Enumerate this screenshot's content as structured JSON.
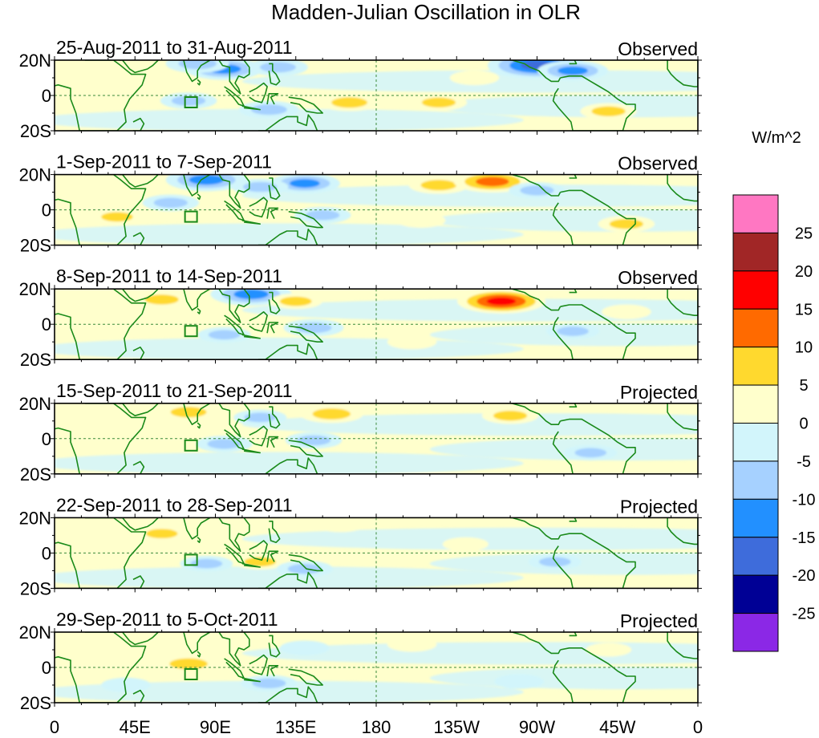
{
  "chart_data": {
    "type": "heatmap",
    "title": "Madden-Julian Oscillation in OLR",
    "variable": "OLR anomaly",
    "colorbar": {
      "units": "W/m^2",
      "levels": [
        25,
        20,
        15,
        10,
        5,
        0,
        -5,
        -10,
        -15,
        -20,
        -25
      ],
      "colors": [
        "#ff77c2",
        "#a12626",
        "#ff0000",
        "#ff6a00",
        "#ffd92e",
        "#ffffcc",
        "#d2f5fb",
        "#a6d1ff",
        "#2290ff",
        "#3e6cdb",
        "#000095",
        "#8b28e6"
      ]
    },
    "x_axis": {
      "ticks": [
        "0",
        "45E",
        "90E",
        "135E",
        "180",
        "135W",
        "90W",
        "45W",
        "0"
      ],
      "tick_values": [
        0,
        45,
        90,
        135,
        180,
        225,
        270,
        315,
        360
      ],
      "range": [
        0,
        360
      ]
    },
    "y_axis": {
      "ticks": [
        "20N",
        "0",
        "20S"
      ],
      "tick_values": [
        20,
        0,
        -20
      ],
      "range": [
        -20,
        20
      ]
    },
    "panels": [
      {
        "period": "25-Aug-2011 to 31-Aug-2011",
        "status": "Observed",
        "anomalies": [
          {
            "lon": 95,
            "lat": 15,
            "value": -12
          },
          {
            "lon": 80,
            "lat": 18,
            "value": -8
          },
          {
            "lon": 125,
            "lat": 16,
            "value": -7
          },
          {
            "lon": 270,
            "lat": 17,
            "value": -18
          },
          {
            "lon": 290,
            "lat": 14,
            "value": -10
          },
          {
            "lon": 75,
            "lat": -3,
            "value": -6
          },
          {
            "lon": 120,
            "lat": -8,
            "value": -7
          },
          {
            "lon": 165,
            "lat": -4,
            "value": 7
          },
          {
            "lon": 215,
            "lat": -4,
            "value": 6
          },
          {
            "lon": 310,
            "lat": -9,
            "value": 6
          },
          {
            "lon": 235,
            "lat": 10,
            "value": 4
          },
          {
            "lon": 30,
            "lat": 3,
            "value": 3
          }
        ]
      },
      {
        "period": "1-Sep-2011 to 7-Sep-2011",
        "status": "Observed",
        "anomalies": [
          {
            "lon": 85,
            "lat": 17,
            "value": -13
          },
          {
            "lon": 140,
            "lat": 15,
            "value": -10
          },
          {
            "lon": 115,
            "lat": 13,
            "value": -6
          },
          {
            "lon": 215,
            "lat": 14,
            "value": 7
          },
          {
            "lon": 245,
            "lat": 16,
            "value": 12
          },
          {
            "lon": 270,
            "lat": 11,
            "value": -6
          },
          {
            "lon": 150,
            "lat": -3,
            "value": -6
          },
          {
            "lon": 205,
            "lat": -6,
            "value": 4
          },
          {
            "lon": 320,
            "lat": -8,
            "value": 6
          },
          {
            "lon": 35,
            "lat": -4,
            "value": 5
          },
          {
            "lon": 65,
            "lat": 4,
            "value": -6
          }
        ]
      },
      {
        "period": "8-Sep-2011 to 14-Sep-2011",
        "status": "Observed",
        "anomalies": [
          {
            "lon": 110,
            "lat": 17,
            "value": -13
          },
          {
            "lon": 60,
            "lat": 14,
            "value": 6
          },
          {
            "lon": 135,
            "lat": 13,
            "value": 5
          },
          {
            "lon": 250,
            "lat": 13,
            "value": 15
          },
          {
            "lon": 145,
            "lat": -2,
            "value": -7
          },
          {
            "lon": 95,
            "lat": -6,
            "value": -5
          },
          {
            "lon": 200,
            "lat": -10,
            "value": 4
          },
          {
            "lon": 290,
            "lat": -4,
            "value": -5
          },
          {
            "lon": 320,
            "lat": 7,
            "value": 4
          }
        ]
      },
      {
        "period": "15-Sep-2011 to 21-Sep-2011",
        "status": "Projected",
        "anomalies": [
          {
            "lon": 75,
            "lat": 15,
            "value": 7
          },
          {
            "lon": 155,
            "lat": 14,
            "value": 8
          },
          {
            "lon": 255,
            "lat": 13,
            "value": 6
          },
          {
            "lon": 115,
            "lat": 12,
            "value": -5
          },
          {
            "lon": 95,
            "lat": -3,
            "value": -6
          },
          {
            "lon": 145,
            "lat": -1,
            "value": -6
          },
          {
            "lon": 300,
            "lat": -8,
            "value": -5
          },
          {
            "lon": 30,
            "lat": 5,
            "value": 4
          }
        ]
      },
      {
        "period": "22-Sep-2011 to 28-Sep-2011",
        "status": "Projected",
        "anomalies": [
          {
            "lon": 60,
            "lat": 11,
            "value": 5
          },
          {
            "lon": 160,
            "lat": 16,
            "value": 4
          },
          {
            "lon": 115,
            "lat": -5,
            "value": 5
          },
          {
            "lon": 140,
            "lat": -9,
            "value": -6
          },
          {
            "lon": 85,
            "lat": -6,
            "value": -5
          },
          {
            "lon": 280,
            "lat": -5,
            "value": -5
          },
          {
            "lon": 230,
            "lat": 5,
            "value": 3
          }
        ]
      },
      {
        "period": "29-Sep-2011 to 5-Oct-2011",
        "status": "Projected",
        "anomalies": [
          {
            "lon": 75,
            "lat": 2,
            "value": 8
          },
          {
            "lon": 120,
            "lat": -9,
            "value": -6
          },
          {
            "lon": 140,
            "lat": 11,
            "value": -4
          },
          {
            "lon": 200,
            "lat": 13,
            "value": 4
          },
          {
            "lon": 260,
            "lat": -8,
            "value": -4
          },
          {
            "lon": 40,
            "lat": -10,
            "value": -4
          },
          {
            "lon": 310,
            "lat": 10,
            "value": 3
          }
        ]
      }
    ],
    "grid_lines": [
      "equator",
      "180"
    ],
    "legend": "right"
  }
}
